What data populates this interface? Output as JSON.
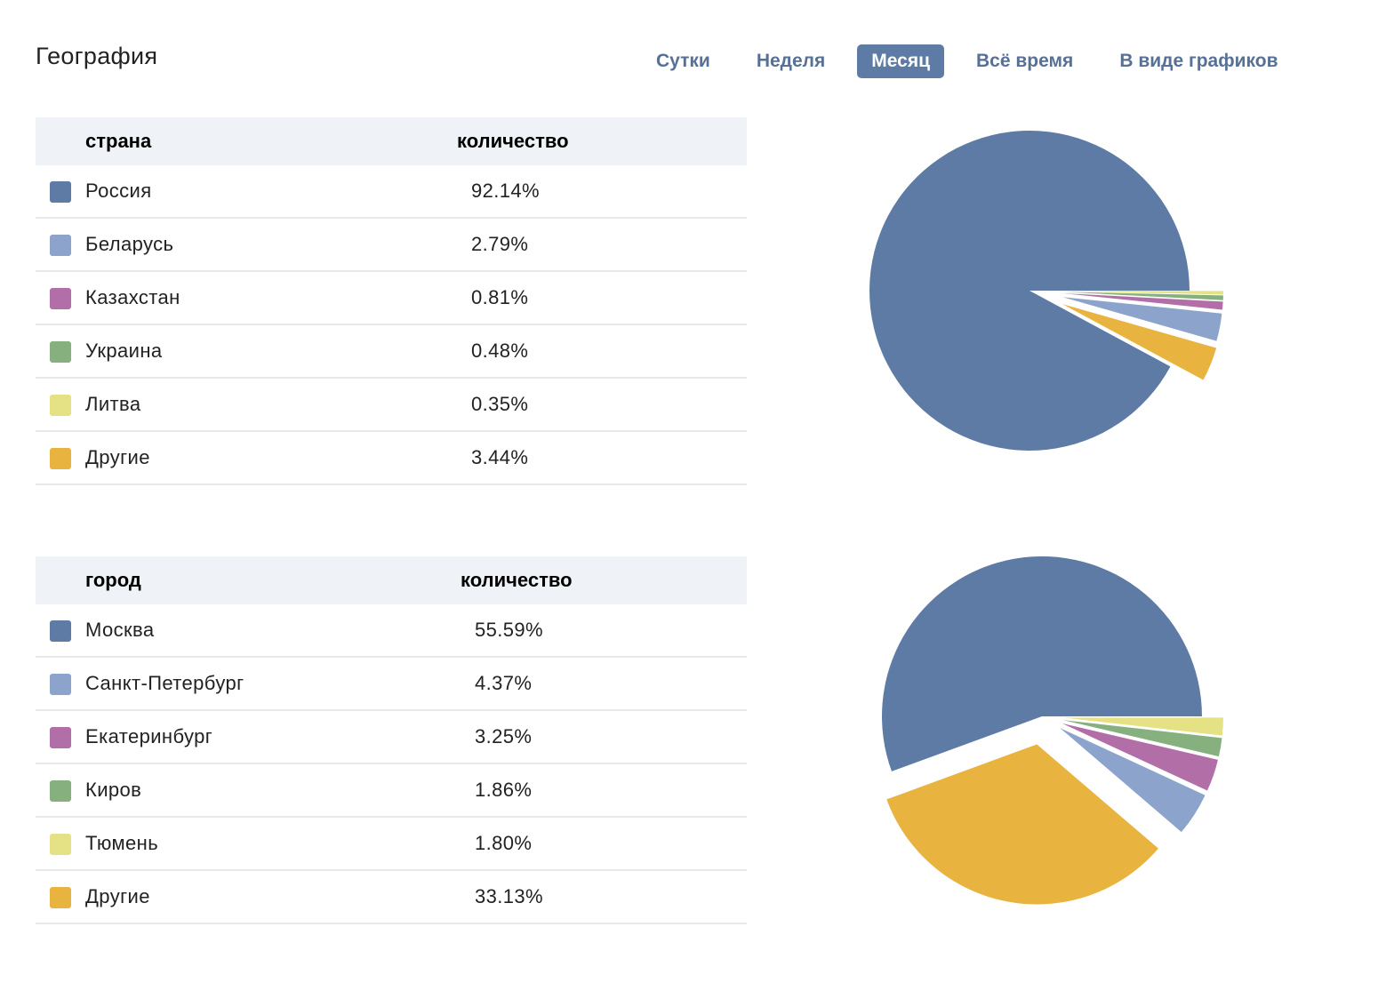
{
  "page": {
    "title": "География"
  },
  "tabs": [
    {
      "label": "Сутки",
      "active": false
    },
    {
      "label": "Неделя",
      "active": false
    },
    {
      "label": "Месяц",
      "active": true
    },
    {
      "label": "Всё время",
      "active": false
    },
    {
      "label": "В виде графиков",
      "active": false
    }
  ],
  "countries": {
    "header": {
      "name": "страна",
      "value": "количество"
    },
    "rows": [
      {
        "name": "Россия",
        "value": "92.14%",
        "color": "#5e7ba5"
      },
      {
        "name": "Беларусь",
        "value": "2.79%",
        "color": "#8ca4cc"
      },
      {
        "name": "Казахстан",
        "value": "0.81%",
        "color": "#b26fa7"
      },
      {
        "name": "Украина",
        "value": "0.48%",
        "color": "#87b07f"
      },
      {
        "name": "Литва",
        "value": "0.35%",
        "color": "#e5e285"
      },
      {
        "name": "Другие",
        "value": "3.44%",
        "color": "#e9b33f"
      }
    ]
  },
  "cities": {
    "header": {
      "name": "город",
      "value": "количество"
    },
    "rows": [
      {
        "name": "Москва",
        "value": "55.59%",
        "color": "#5e7ba5"
      },
      {
        "name": "Санкт-Петербург",
        "value": "4.37%",
        "color": "#8ca4cc"
      },
      {
        "name": "Екатеринбург",
        "value": "3.25%",
        "color": "#b26fa7"
      },
      {
        "name": "Киров",
        "value": "1.86%",
        "color": "#87b07f"
      },
      {
        "name": "Тюмень",
        "value": "1.80%",
        "color": "#e5e285"
      },
      {
        "name": "Другие",
        "value": "33.13%",
        "color": "#e9b33f"
      }
    ]
  },
  "chart_data": [
    {
      "type": "pie",
      "title": "",
      "categories": [
        "Россия",
        "Беларусь",
        "Казахстан",
        "Украина",
        "Литва",
        "Другие"
      ],
      "values": [
        92.14,
        2.79,
        0.81,
        0.48,
        0.35,
        3.44
      ],
      "colors": [
        "#5e7ba5",
        "#8ca4cc",
        "#b26fa7",
        "#87b07f",
        "#e5e285",
        "#e9b33f"
      ]
    },
    {
      "type": "pie",
      "title": "",
      "categories": [
        "Москва",
        "Санкт-Петербург",
        "Екатеринбург",
        "Киров",
        "Тюмень",
        "Другие"
      ],
      "values": [
        55.59,
        4.37,
        3.25,
        1.86,
        1.8,
        33.13
      ],
      "colors": [
        "#5e7ba5",
        "#8ca4cc",
        "#b26fa7",
        "#87b07f",
        "#e5e285",
        "#e9b33f"
      ]
    }
  ]
}
